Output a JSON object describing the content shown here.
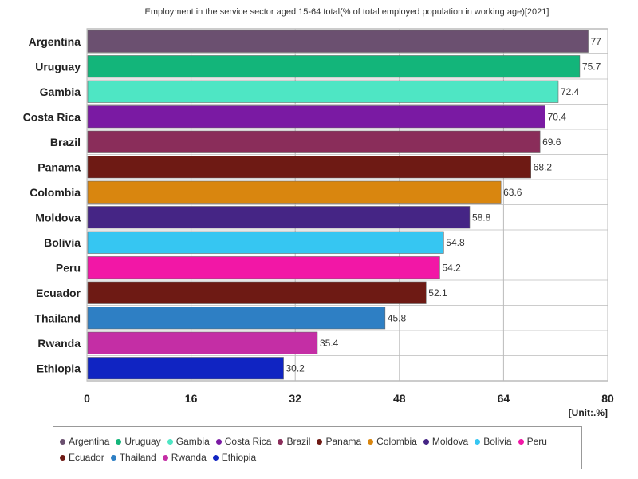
{
  "chart_data": {
    "type": "bar",
    "orientation": "horizontal",
    "title": "Employment in the service sector aged 15-64 total(% of total employed population in working age)[2021]",
    "unit": "[Unit:.%]",
    "categories": [
      "Argentina",
      "Uruguay",
      "Gambia",
      "Costa Rica",
      "Brazil",
      "Panama",
      "Colombia",
      "Moldova",
      "Bolivia",
      "Peru",
      "Ecuador",
      "Thailand",
      "Rwanda",
      "Ethiopia"
    ],
    "values": [
      77,
      75.7,
      72.4,
      70.4,
      69.6,
      68.2,
      63.6,
      58.8,
      54.8,
      54.2,
      52.1,
      45.8,
      35.4,
      30.2
    ],
    "value_labels": [
      "77",
      "75.7",
      "72.4",
      "70.4",
      "69.6",
      "68.2",
      "63.6",
      "58.8",
      "54.8",
      "54.2",
      "52.1",
      "45.8",
      "35.4",
      "30.2"
    ],
    "colors": [
      "#6b5070",
      "#13b57a",
      "#4ee6c4",
      "#7a1aa3",
      "#8a2d5a",
      "#6e1a14",
      "#d9860f",
      "#452585",
      "#36c6f2",
      "#f217a6",
      "#6e1a14",
      "#2e7fc4",
      "#c42ea5",
      "#1024c2"
    ],
    "xlim": [
      0,
      80
    ],
    "xticks": [
      "0",
      "16",
      "32",
      "48",
      "64",
      "80"
    ],
    "grid": true,
    "legend_position": "bottom"
  }
}
